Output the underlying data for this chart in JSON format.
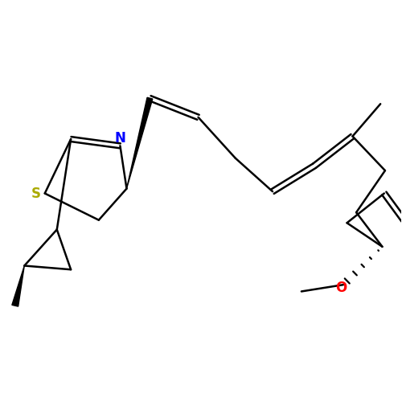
{
  "bg_color": "#ffffff",
  "atom_colors": {
    "S": "#aaaa00",
    "N": "#0000ff",
    "O": "#ff0000",
    "C": "#000000"
  },
  "bond_color": "#000000",
  "bond_width": 1.8,
  "figsize": [
    5.0,
    5.0
  ],
  "dpi": 100
}
